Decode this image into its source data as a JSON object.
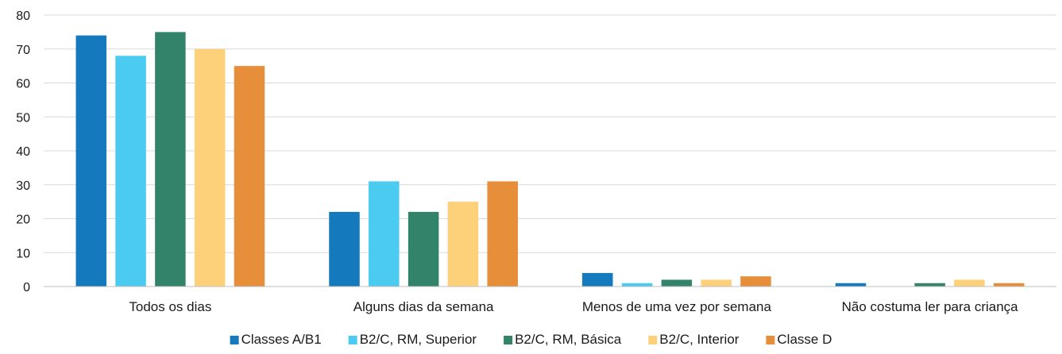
{
  "chart_data": {
    "type": "bar",
    "title": "",
    "xlabel": "",
    "ylabel": "",
    "ylim": [
      0,
      80
    ],
    "yticks": [
      0,
      10,
      20,
      30,
      40,
      50,
      60,
      70,
      80
    ],
    "grid": true,
    "legend_position": "bottom",
    "categories": [
      "Todos os dias",
      "Alguns dias da semana",
      "Menos de uma vez por semana",
      "Não costuma ler para criança"
    ],
    "series": [
      {
        "name": "Classes A/B1",
        "color": "#1479bd",
        "values": [
          74,
          22,
          4,
          1
        ]
      },
      {
        "name": "B2/C, RM, Superior",
        "color": "#4ccbf1",
        "values": [
          68,
          31,
          1,
          0
        ]
      },
      {
        "name": "B2/C, RM, Básica",
        "color": "#33836a",
        "values": [
          75,
          22,
          2,
          1
        ]
      },
      {
        "name": "B2/C, Interior",
        "color": "#fdd07a",
        "values": [
          70,
          25,
          2,
          2
        ]
      },
      {
        "name": "Classe D",
        "color": "#e68e3a",
        "values": [
          65,
          31,
          3,
          1
        ]
      }
    ]
  }
}
